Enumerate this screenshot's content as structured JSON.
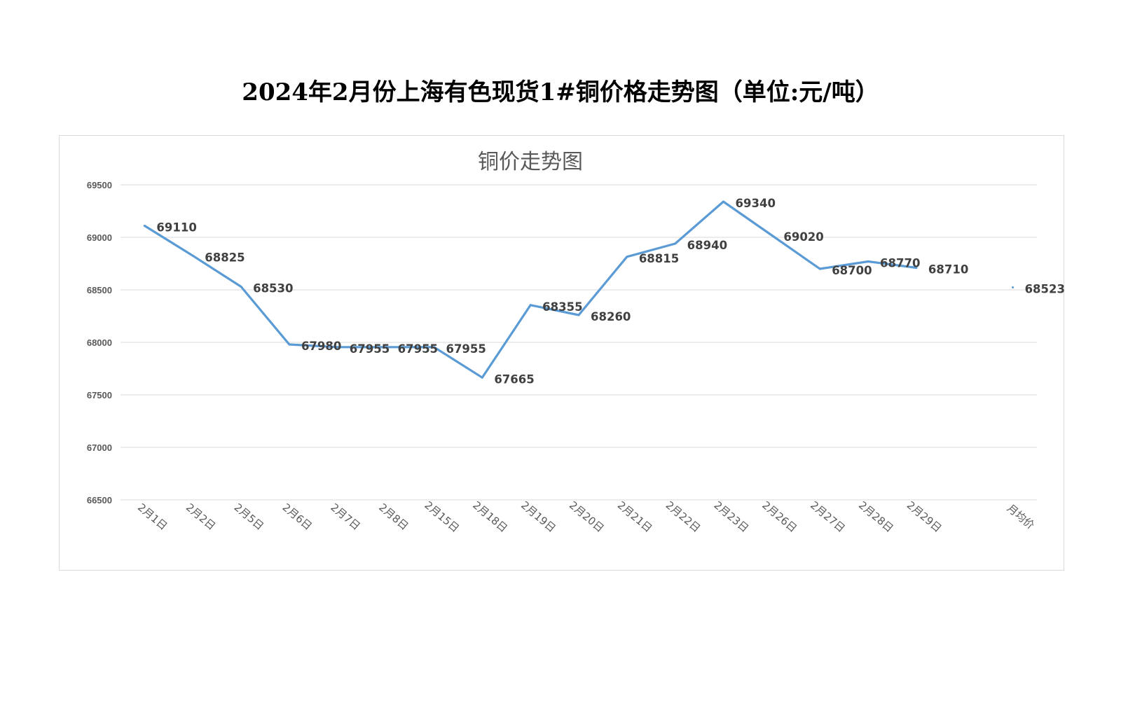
{
  "page_title": "2024年2月份上海有色现货1#铜价格走势图（单位:元/吨）",
  "chart_data": {
    "type": "line",
    "title": "铜价走势图",
    "categories": [
      "2月1日",
      "2月2日",
      "2月5日",
      "2月6日",
      "2月7日",
      "2月8日",
      "2月15日",
      "2月18日",
      "2月19日",
      "2月20日",
      "2月21日",
      "2月22日",
      "2月23日",
      "2月26日",
      "2月27日",
      "2月28日",
      "2月29日",
      "",
      "月均价"
    ],
    "series": [
      {
        "values": [
          69110,
          68825,
          68530,
          67980,
          67955,
          67955,
          67955,
          67665,
          68355,
          68260,
          68815,
          68940,
          69340,
          69020,
          68700,
          68770,
          68710,
          null,
          68523
        ],
        "color": "#5B9BD5"
      }
    ],
    "ylim": [
      66500,
      69500
    ],
    "yticks": [
      66500,
      67000,
      67500,
      68000,
      68500,
      69000,
      69500
    ],
    "grid": true,
    "data_labels": true,
    "legend": "none"
  }
}
